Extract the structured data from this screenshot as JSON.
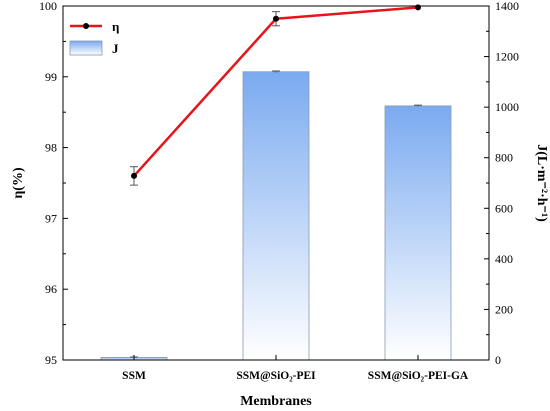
{
  "chart_data": {
    "type": "bar+line",
    "title": "",
    "xlabel": "Membranes",
    "categories": [
      "SSM",
      "SSM@SiO₂-PEI",
      "SSM@SiO₂-PEI-GA"
    ],
    "left_axis": {
      "label": "η(%)",
      "range": [
        95,
        100
      ],
      "ticks": [
        "95",
        "96",
        "97",
        "98",
        "99",
        "100"
      ]
    },
    "right_axis": {
      "label": "J(L·m⁻²·h⁻¹)",
      "range": [
        0,
        1400
      ],
      "ticks": [
        "0",
        "200",
        "400",
        "600",
        "800",
        "1000",
        "1200",
        "1400"
      ]
    },
    "series": [
      {
        "name": "η",
        "kind": "line",
        "axis": "left",
        "values": [
          97.6,
          99.82,
          99.98
        ],
        "errors": [
          0.13,
          0.1,
          0.0
        ],
        "color": "#e8141b"
      },
      {
        "name": "J",
        "kind": "bar",
        "axis": "right",
        "values": [
          10,
          1140,
          1005
        ],
        "errors": [
          2,
          3,
          3
        ],
        "color_top": "#7aaaf0",
        "color_bottom": "#ffffff"
      }
    ],
    "legend": {
      "position": "top-left",
      "entries": [
        "η",
        "J"
      ]
    },
    "grid": false
  }
}
